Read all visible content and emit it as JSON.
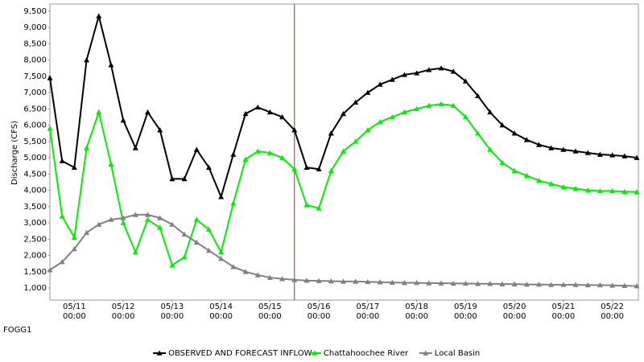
{
  "chart_data": {
    "type": "line",
    "ylabel": "Discharge (CFS)",
    "footer": "FOGG1",
    "categories": [
      null,
      null,
      "05/11\n00:00",
      null,
      null,
      null,
      "05/12\n00:00",
      null,
      null,
      null,
      "05/13\n00:00",
      null,
      null,
      null,
      "05/14\n00:00",
      null,
      null,
      null,
      "05/15\n00:00",
      null,
      null,
      null,
      "05/16\n00:00",
      null,
      null,
      null,
      "05/17\n00:00",
      null,
      null,
      null,
      "05/18\n00:00",
      null,
      null,
      null,
      "05/19\n00:00",
      null,
      null,
      null,
      "05/20\n00:00",
      null,
      null,
      null,
      "05/21\n00:00",
      null,
      null,
      null,
      "05/22\n00:00",
      null,
      null
    ],
    "series": [
      {
        "name": "OBSERVED AND FORECAST INFLOW",
        "color": "#000000",
        "values": [
          7450,
          4900,
          4700,
          8000,
          9350,
          7850,
          6150,
          5300,
          6400,
          5850,
          4350,
          4350,
          5250,
          4700,
          3800,
          5100,
          6350,
          6550,
          6400,
          6250,
          5850,
          4700,
          4650,
          5750,
          6350,
          6700,
          7000,
          7250,
          7400,
          7550,
          7600,
          7700,
          7750,
          7650,
          7350,
          6900,
          6400,
          6000,
          5750,
          5550,
          5400,
          5300,
          5250,
          5200,
          5150,
          5100,
          5080,
          5050,
          5000
        ]
      },
      {
        "name": "Chattahoochee River",
        "color": "#00ee00",
        "values": [
          5900,
          3200,
          2550,
          5300,
          6400,
          4800,
          3000,
          2100,
          3100,
          2850,
          1700,
          1950,
          3100,
          2800,
          2100,
          3600,
          4950,
          5200,
          5150,
          5000,
          4650,
          3550,
          3450,
          4600,
          5200,
          5500,
          5850,
          6100,
          6250,
          6400,
          6500,
          6600,
          6650,
          6600,
          6250,
          5750,
          5250,
          4850,
          4600,
          4450,
          4300,
          4200,
          4100,
          4050,
          4000,
          3980,
          3980,
          3960,
          3950
        ]
      },
      {
        "name": "Local Basin",
        "color": "#808080",
        "values": [
          1550,
          1800,
          2200,
          2700,
          2950,
          3100,
          3150,
          3250,
          3250,
          3150,
          2950,
          2650,
          2400,
          2150,
          1900,
          1650,
          1500,
          1400,
          1320,
          1280,
          1250,
          1230,
          1220,
          1210,
          1200,
          1200,
          1190,
          1180,
          1170,
          1160,
          1160,
          1150,
          1150,
          1140,
          1140,
          1130,
          1130,
          1120,
          1120,
          1110,
          1110,
          1100,
          1100,
          1100,
          1090,
          1090,
          1080,
          1070,
          1060
        ]
      }
    ],
    "ylim": [
      630,
      9720
    ],
    "yticks": [
      {
        "value": 1000,
        "label": "1,000"
      },
      {
        "value": 1500,
        "label": "1,500"
      },
      {
        "value": 2000,
        "label": "2,000"
      },
      {
        "value": 2500,
        "label": "2,500"
      },
      {
        "value": 3000,
        "label": "3,000"
      },
      {
        "value": 3500,
        "label": "3,500"
      },
      {
        "value": 4000,
        "label": "4,000"
      },
      {
        "value": 4500,
        "label": "4,500"
      },
      {
        "value": 5000,
        "label": "5,000"
      },
      {
        "value": 5500,
        "label": "5,500"
      },
      {
        "value": 6000,
        "label": "6,000"
      },
      {
        "value": 6500,
        "label": "6,500"
      },
      {
        "value": 7000,
        "label": "7,000"
      },
      {
        "value": 7500,
        "label": "7,500"
      },
      {
        "value": 8000,
        "label": "8,000"
      },
      {
        "value": 8500,
        "label": "8,500"
      },
      {
        "value": 9000,
        "label": "9,000"
      },
      {
        "value": 9500,
        "label": "9,500"
      }
    ],
    "vline_index": 20,
    "vline_color": "#a52a2a",
    "grid": false,
    "legend": "bottom"
  }
}
